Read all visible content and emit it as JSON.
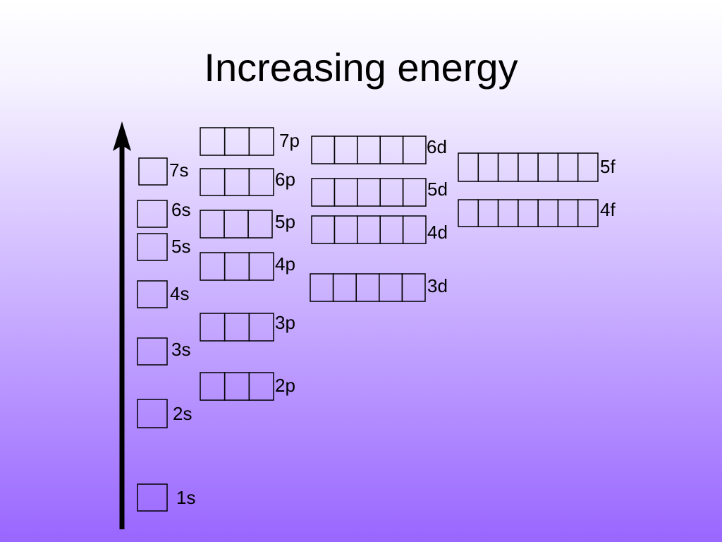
{
  "title": "Increasing energy",
  "orbitals": [
    {
      "label": "1s"
    },
    {
      "label": "2s"
    },
    {
      "label": "3s"
    },
    {
      "label": "4s"
    },
    {
      "label": "5s"
    },
    {
      "label": "6s"
    },
    {
      "label": "7s"
    },
    {
      "label": "2p"
    },
    {
      "label": "3p"
    },
    {
      "label": "4p"
    },
    {
      "label": "5p"
    },
    {
      "label": "6p"
    },
    {
      "label": "7p"
    },
    {
      "label": "3d"
    },
    {
      "label": "4d"
    },
    {
      "label": "5d"
    },
    {
      "label": "6d"
    },
    {
      "label": "4f"
    },
    {
      "label": "5f"
    }
  ]
}
